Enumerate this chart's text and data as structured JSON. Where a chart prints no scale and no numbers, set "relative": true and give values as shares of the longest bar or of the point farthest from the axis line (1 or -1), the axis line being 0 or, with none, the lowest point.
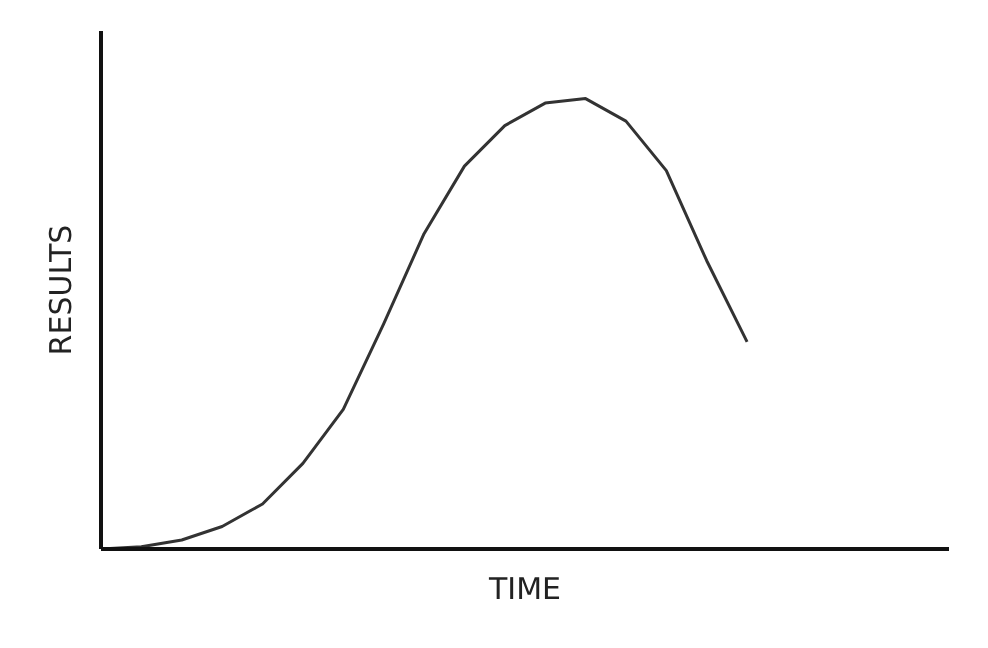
{
  "chart_data": {
    "type": "line",
    "relative": true,
    "xlabel": "TIME",
    "ylabel": "RESULTS",
    "grid": false,
    "marker": "none",
    "line_style": "solid",
    "categories": [
      null,
      null,
      null,
      null,
      null,
      null,
      null,
      null,
      null,
      null,
      null,
      null,
      null,
      null,
      null,
      null,
      null,
      null,
      null,
      null,
      null
    ],
    "series": [
      {
        "color": "#333333",
        "values": [
          0,
          0.005,
          0.02,
          0.05,
          0.1,
          0.19,
          0.31,
          0.5,
          0.7,
          0.85,
          0.94,
          0.99,
          1.0,
          0.95,
          0.84,
          0.64,
          0.46,
          null,
          null,
          null,
          null
        ]
      }
    ]
  }
}
